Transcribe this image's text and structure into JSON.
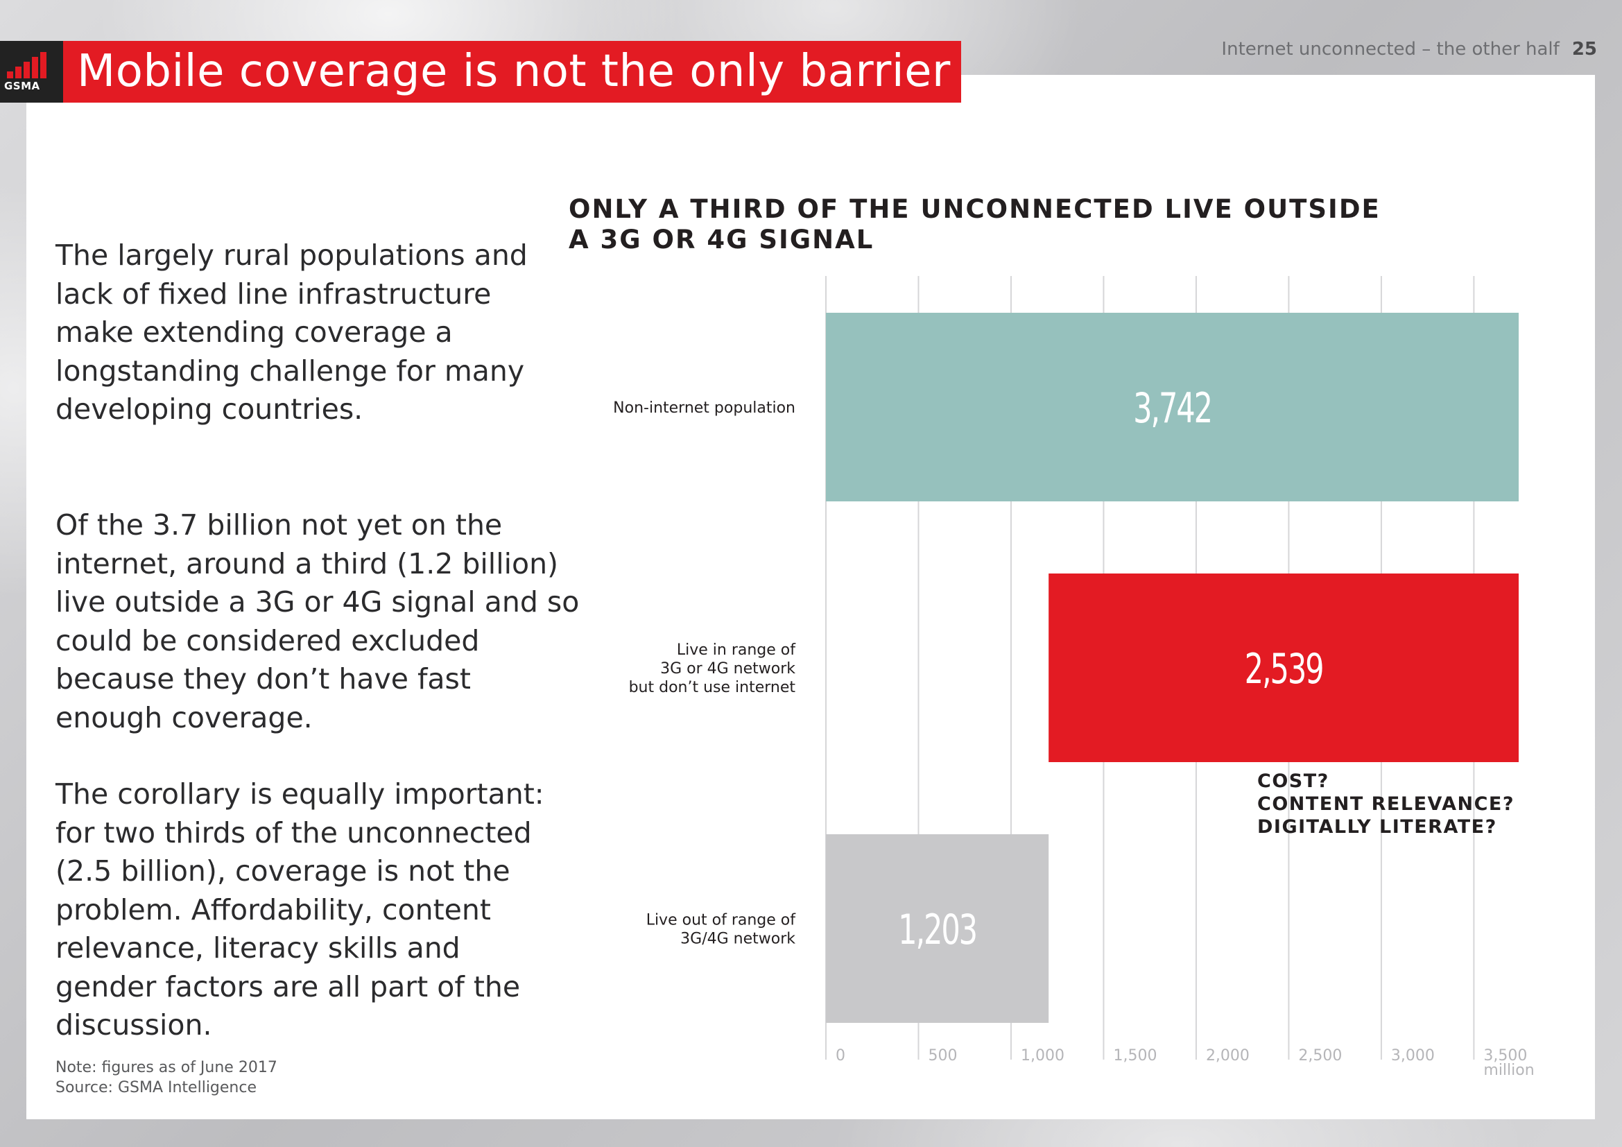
{
  "header": {
    "logo_text": "GSMA",
    "title": "Mobile coverage is not the only barrier",
    "running_head": "Internet unconnected – the other half",
    "page_number": "25"
  },
  "body": {
    "paragraphs": [
      "The largely rural populations and lack of fixed line infrastructure make extending coverage a longstanding challenge for many developing countries.",
      "Of the 3.7 billion not yet on the internet, around a third (1.2 billion) live outside a 3G or 4G signal and so could be considered excluded because they don’t have fast enough coverage.",
      "The corollary is equally important: for two thirds of the unconnected (2.5 billion), coverage is not the problem. Affordability, content relevance, literacy skills and gender factors are all part of the discussion."
    ],
    "note": "Note: figures as of June 2017",
    "source": "Source: GSMA Intelligence"
  },
  "questions": [
    "COST?",
    "CONTENT RELEVANCE?",
    "DIGITALLY LITERATE?"
  ],
  "colors": {
    "brand_red": "#e31b23",
    "teal": "#96c1bd",
    "grey_bar": "#c8c8ca",
    "grid": "#d6d6d8"
  },
  "chart_data": {
    "type": "bar",
    "orientation": "horizontal",
    "title": "ONLY A THIRD OF THE UNCONNECTED LIVE OUTSIDE A 3G OR 4G SIGNAL",
    "categories": [
      [
        "Non-internet population"
      ],
      [
        "Live in range of",
        "3G or 4G network",
        "but don’t use internet"
      ],
      [
        "Live out of range of",
        "3G/4G network"
      ]
    ],
    "bars": [
      {
        "start": 0,
        "end": 3742,
        "label": "3,742",
        "color": "#96c1bd"
      },
      {
        "start": 1203,
        "end": 3742,
        "label": "2,539",
        "color": "#e31b23"
      },
      {
        "start": 0,
        "end": 1203,
        "label": "1,203",
        "color": "#c8c8ca"
      }
    ],
    "xlim": [
      0,
      3742
    ],
    "xticks": [
      0,
      500,
      1000,
      1500,
      2000,
      2500,
      3000,
      3500
    ],
    "xtick_labels": [
      "0",
      "500",
      "1,000",
      "1,500",
      "2,000",
      "2,500",
      "3,000",
      "3,500"
    ],
    "unit_label": "million",
    "grid": true
  }
}
